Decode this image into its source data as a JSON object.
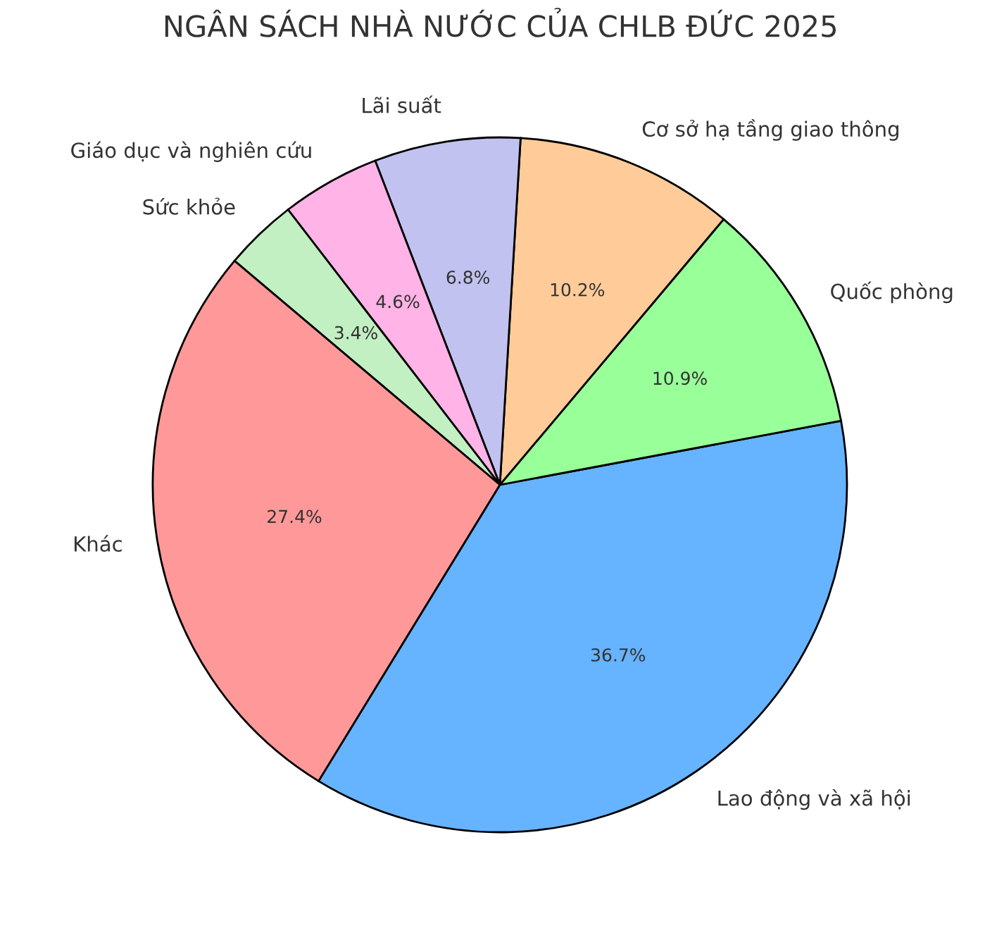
{
  "chart_data": {
    "type": "pie",
    "title": "NGÂN SÁCH NHÀ NƯỚC CỦA CHLB ĐỨC 2025",
    "categories": [
      "Lao động và xã hội",
      "Quốc phòng",
      "Cơ sở hạ tầng giao thông",
      "Lãi suất",
      "Giáo dục và nghiên cứu",
      "Sức khỏe",
      "Khác"
    ],
    "values": [
      36.7,
      10.9,
      10.2,
      6.8,
      4.6,
      3.4,
      27.4
    ],
    "colors": [
      "#66b3ff",
      "#99ff99",
      "#ffcc99",
      "#c2c2f0",
      "#ffb3e6",
      "#c2f0c2",
      "#ff9999"
    ],
    "value_labels": [
      "36.7%",
      "10.9%",
      "10.2%",
      "6.8%",
      "4.6%",
      "3.4%",
      "27.4%"
    ]
  }
}
